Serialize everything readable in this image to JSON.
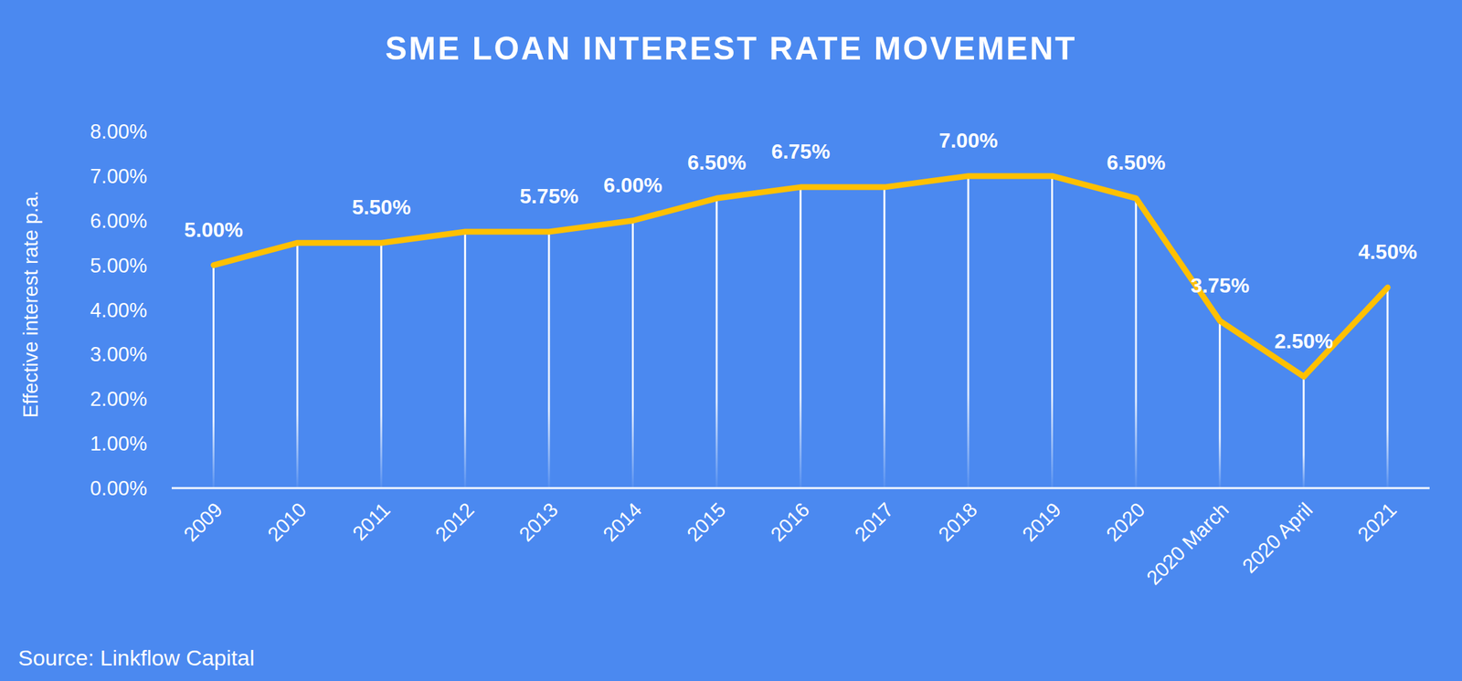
{
  "chart_data": {
    "type": "line",
    "title": "SME LOAN INTEREST RATE MOVEMENT",
    "source": "Source: Linkflow Capital",
    "y_label": "Effective interest rate p.a.",
    "categories": [
      "2009",
      "2010",
      "2011",
      "2012",
      "2013",
      "2014",
      "2015",
      "2016",
      "2017",
      "2018",
      "2019",
      "2020",
      "2020 March",
      "2020 April",
      "2021"
    ],
    "series": [
      {
        "name": null,
        "color": "#ffc000",
        "values": [
          5.0,
          5.5,
          5.5,
          5.75,
          5.75,
          6.0,
          6.5,
          6.75,
          6.75,
          7.0,
          7.0,
          6.5,
          3.75,
          2.5,
          4.5
        ],
        "value_labels": [
          "5.00%",
          null,
          "5.50%",
          null,
          "5.75%",
          "6.00%",
          "6.50%",
          "6.75%",
          null,
          "7.00%",
          null,
          "6.50%",
          "3.75%",
          "2.50%",
          "4.50%"
        ]
      }
    ],
    "ylim": [
      0,
      8
    ],
    "yticks": [
      {
        "value": 0,
        "label": "0.00%"
      },
      {
        "value": 1,
        "label": "1.00%"
      },
      {
        "value": 2,
        "label": "2.00%"
      },
      {
        "value": 3,
        "label": "3.00%"
      },
      {
        "value": 4,
        "label": "4.00%"
      },
      {
        "value": 5,
        "label": "5.00%"
      },
      {
        "value": 6,
        "label": "6.00%"
      },
      {
        "value": 7,
        "label": "7.00%"
      },
      {
        "value": 8,
        "label": "8.00%"
      }
    ],
    "data_labels": true,
    "grid": false
  }
}
